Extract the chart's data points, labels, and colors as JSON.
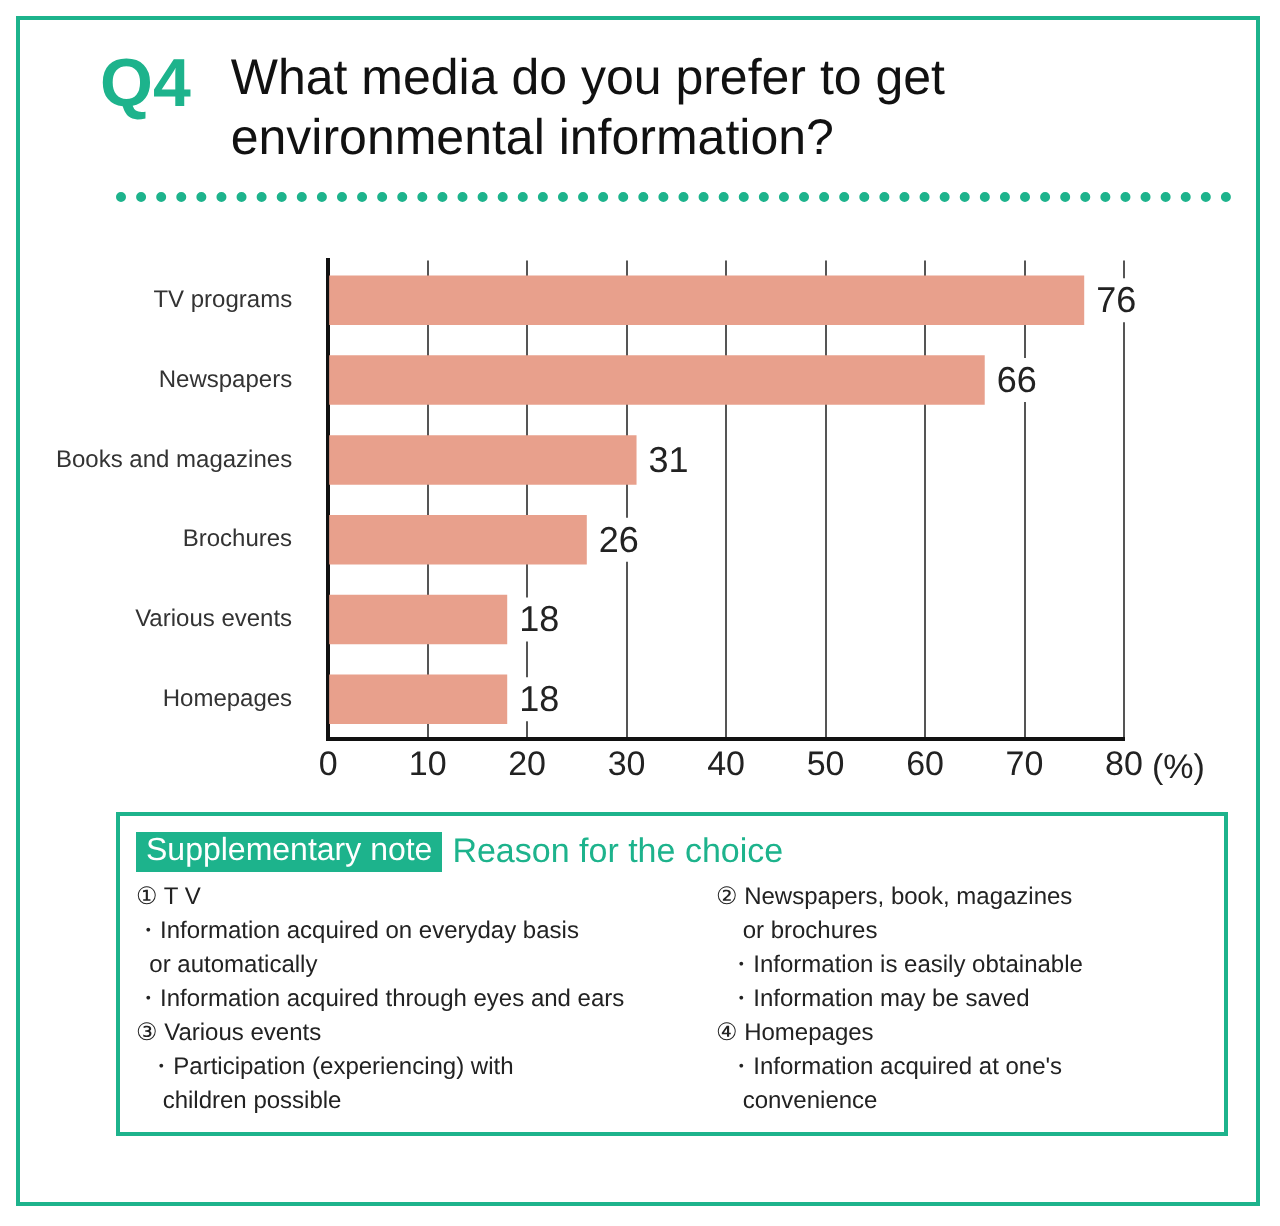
{
  "chart_data": {
    "type": "bar",
    "orientation": "horizontal",
    "title": "Q4",
    "subtitle": "What media do you prefer to get environmental information?",
    "xlabel": "(%)",
    "categories": [
      "TV programs",
      "Newspapers",
      "Books and magazines",
      "Brochures",
      "Various events",
      "Homepages"
    ],
    "values": [
      76,
      66,
      31,
      26,
      18,
      18
    ],
    "color": "#e8a08c",
    "xlim": [
      0,
      80
    ],
    "xticks": [
      0,
      10,
      20,
      30,
      40,
      50,
      60,
      70,
      80
    ],
    "grid": "x",
    "data_labels": true,
    "legend": false,
    "annotations": [
      "Supplementary note",
      "Reason for the choice",
      "① T V\n・Information acquired on everyday basis\n  or automatically\n・Information acquired through eyes and ears",
      "② Newspapers, book, magazines\n    or brochures\n  ・Information is easily obtainable\n  ・Information may be saved",
      "③ Various events\n  ・Participation (experiencing) with\n    children possible",
      "④ Homepages\n  ・Information acquired at one's\n    convenience"
    ]
  }
}
